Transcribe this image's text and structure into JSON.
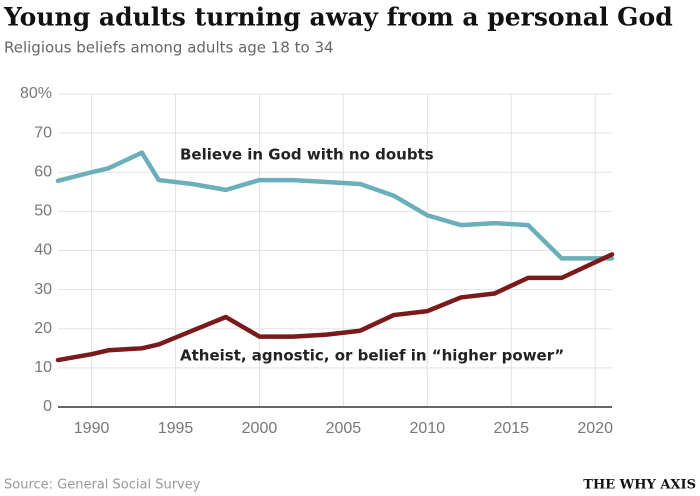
{
  "chart_data": {
    "type": "line",
    "title": "Young adults turning away from a personal God",
    "subtitle": "Religious beliefs among adults age 18 to 34",
    "source": "Source: General Social Survey",
    "brand": "THE WHY AXIS",
    "annotations": [
      "Believe in God with no doubts",
      "Atheist, agnostic, or belief in “higher power”"
    ],
    "xlim": [
      1988,
      2021
    ],
    "xticks": [
      1990,
      1995,
      2000,
      2005,
      2010,
      2015,
      2020
    ],
    "ylim": [
      0,
      80
    ],
    "yticks": [
      0,
      10,
      20,
      30,
      40,
      50,
      60,
      70,
      {
        "value": 80,
        "label": "80%"
      }
    ],
    "grid": true,
    "series": [
      {
        "name": "Believe in God with no doubts",
        "color": "#6aafba",
        "x": [
          1988,
          1990,
          1991,
          1992,
          1993,
          1994,
          1996,
          1998,
          2000,
          2002,
          2004,
          2006,
          2008,
          2010,
          2012,
          2014,
          2016,
          2018,
          2021
        ],
        "values": [
          57.8,
          60,
          61,
          63,
          65,
          58,
          57,
          55.5,
          58,
          58,
          57.5,
          57,
          54,
          49,
          46.5,
          47,
          46.5,
          38,
          38
        ]
      },
      {
        "name": "Atheist, agnostic, or belief in “higher power”",
        "color": "#7a1a1a",
        "x": [
          1988,
          1990,
          1991,
          1993,
          1994,
          1996,
          1998,
          2000,
          2002,
          2004,
          2006,
          2008,
          2010,
          2012,
          2014,
          2016,
          2018,
          2021
        ],
        "values": [
          12,
          13.5,
          14.5,
          15,
          16,
          19.5,
          23,
          18,
          18,
          18.5,
          19.5,
          23.5,
          24.5,
          28,
          29,
          33,
          33,
          39
        ]
      }
    ]
  }
}
